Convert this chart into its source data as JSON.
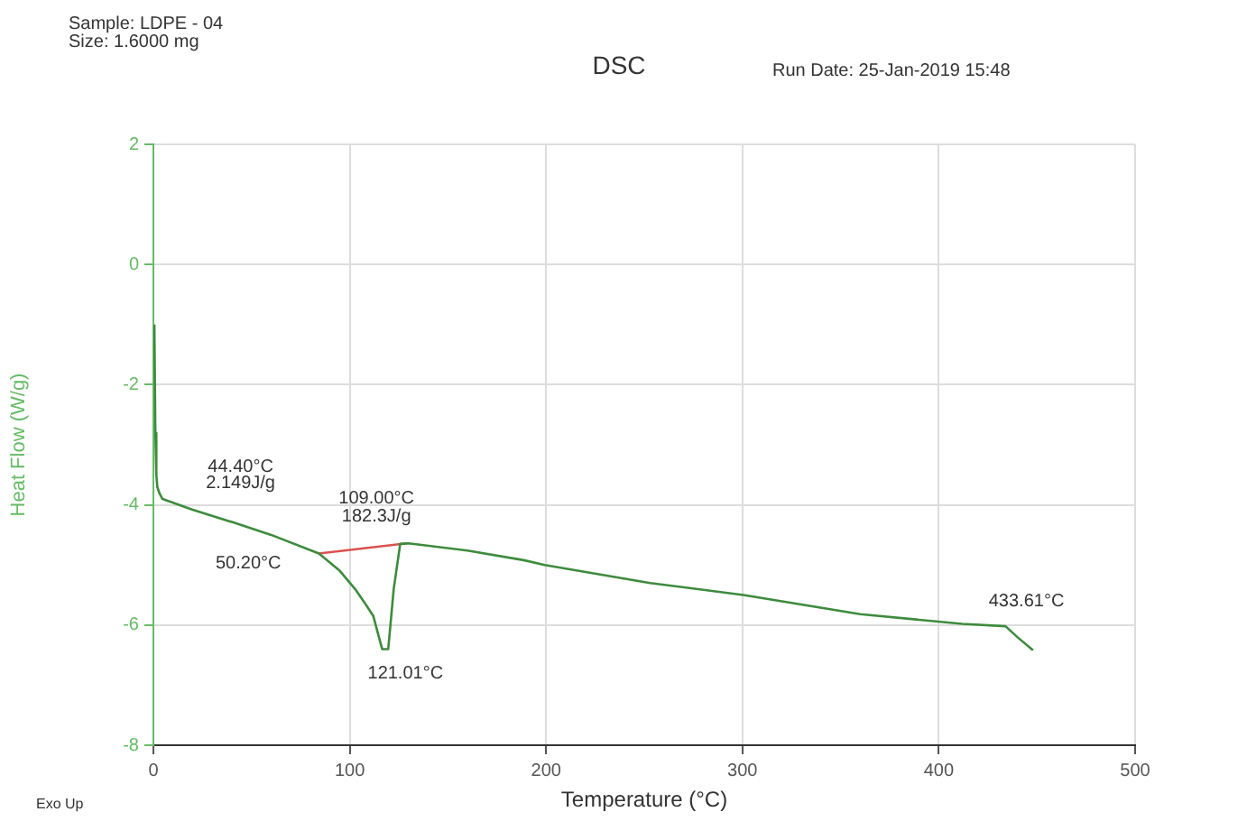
{
  "chart_data": {
    "type": "line",
    "title": "DSC",
    "xlabel": "Temperature (°C)",
    "ylabel": "Heat Flow (W/g)",
    "xlim": [
      0,
      500
    ],
    "xticks": [
      0,
      100,
      200,
      300,
      400,
      500
    ],
    "ylim": [
      -8,
      2
    ],
    "yticks": [
      -8,
      -6,
      -4,
      -2,
      0,
      2
    ],
    "grid": true,
    "legend": false,
    "marker": "none",
    "line_style": "solid",
    "series": [
      {
        "color": "#3d8b3d",
        "x": [
          0.5,
          1,
          1.5,
          2,
          3,
          4.6,
          20,
          41.4,
          60,
          84.3,
          95,
          102.7,
          108,
          112,
          116.5,
          119.6,
          122.4,
          125.7,
          130,
          160,
          188.6,
          199.3,
          253,
          300.5,
          360,
          412,
          434,
          440,
          448
        ],
        "values": [
          -1,
          -2.8,
          -3.5,
          -3.7,
          -3.8,
          -3.9,
          -4.08,
          -4.3,
          -4.5,
          -4.81,
          -5.1,
          -5.4,
          -5.65,
          -5.85,
          -6.4,
          -6.4,
          -5.4,
          -4.65,
          -4.64,
          -4.76,
          -4.92,
          -5.0,
          -5.3,
          -5.5,
          -5.82,
          -5.98,
          -6.02,
          -6.2,
          -6.42
        ]
      },
      {
        "color": "#d9534f",
        "x": [
          84.3,
          129
        ],
        "values": [
          -4.81,
          -4.64
        ]
      }
    ],
    "annotations": [
      "Sample: LDPE - 04",
      "Size:  1.6000 mg",
      "Run Date: 25-Jan-2019 15:48",
      "Exo Up",
      {
        "text": "44.40°C",
        "x": 44.4,
        "y": -4.33
      },
      {
        "text": "2.149J/g",
        "x": 44.4,
        "y": -4.33
      },
      {
        "text": "50.20°C",
        "x": 50.2,
        "y": -4.4
      },
      {
        "text": "109.00°C",
        "x": 109,
        "y": -4.71
      },
      {
        "text": "182.3J/g",
        "x": 109,
        "y": -4.71
      },
      {
        "text": "121.01°C",
        "x": 121.01,
        "y": -5.9
      },
      {
        "text": "433.61°C",
        "x": 433.61,
        "y": -6.02
      }
    ]
  }
}
